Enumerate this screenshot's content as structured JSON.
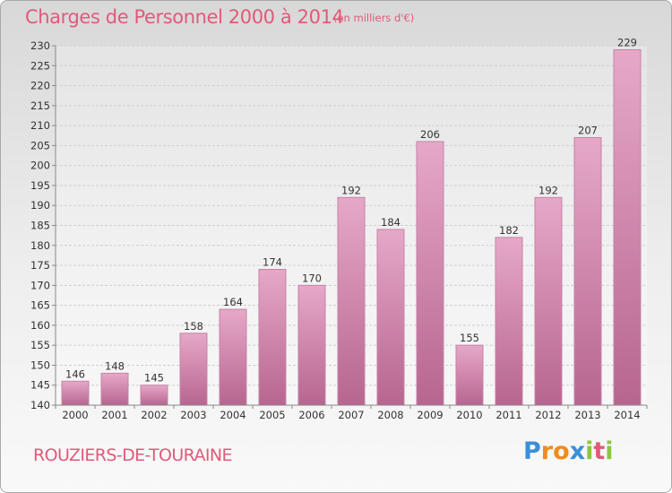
{
  "title": "Charges de Personnel 2000 à 2014",
  "subtitle": "(en milliers d'€)",
  "location": "ROUZIERS-DE-TOURAINE",
  "logo": {
    "text": "Proxiti",
    "letter_colors": [
      "#3a8fd8",
      "#f28a1e",
      "#f28a1e",
      "#3a8fd8",
      "#8cc63f",
      "#e05a7a",
      "#8cc63f"
    ]
  },
  "colors": {
    "bar_top": "#e6a8c8",
    "bar_bottom": "#b7668f",
    "bar_edge": "#c783a7",
    "grid": "#d0d0d0",
    "title": "#e05a7a"
  },
  "chart_data": {
    "type": "bar",
    "categories": [
      "2000",
      "2001",
      "2002",
      "2003",
      "2004",
      "2005",
      "2006",
      "2007",
      "2008",
      "2009",
      "2010",
      "2011",
      "2012",
      "2013",
      "2014"
    ],
    "values": [
      146,
      148,
      145,
      158,
      164,
      174,
      170,
      192,
      184,
      206,
      155,
      182,
      192,
      207,
      229
    ],
    "ylim": [
      140,
      230
    ],
    "yticks": [
      140,
      145,
      150,
      155,
      160,
      165,
      170,
      175,
      180,
      185,
      190,
      195,
      200,
      205,
      210,
      215,
      220,
      225,
      230
    ],
    "grid": true,
    "data_labels": true,
    "xlabel": "",
    "ylabel": ""
  }
}
